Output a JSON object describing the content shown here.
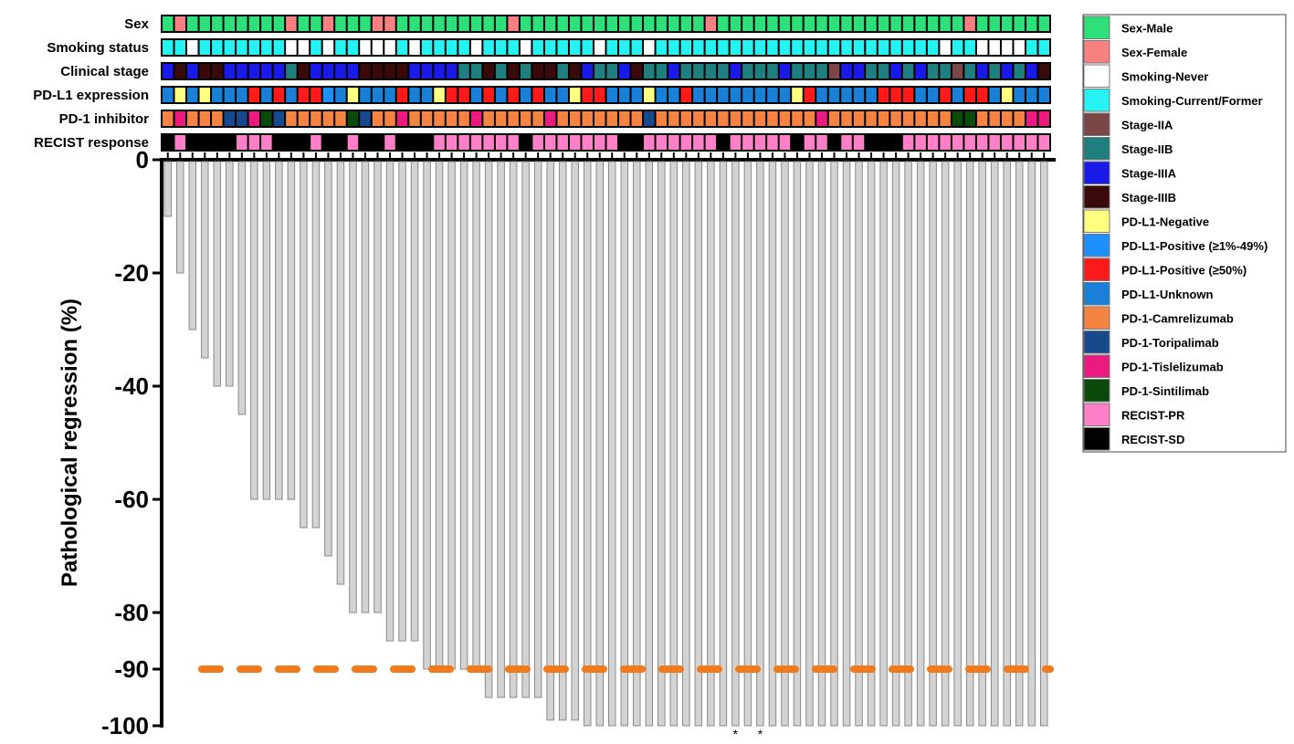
{
  "chart_data": {
    "type": "bar",
    "ylabel": "Pathological regression (%)",
    "ylim": [
      -100,
      0
    ],
    "yticks": [
      0,
      -20,
      -40,
      -60,
      -80,
      -90,
      -100
    ],
    "threshold": {
      "value": -90,
      "color": "#f07a1c",
      "style": "dashed"
    },
    "bar_color": "#d3d3d3",
    "values": [
      -10,
      -20,
      -30,
      -35,
      -40,
      -40,
      -45,
      -60,
      -60,
      -60,
      -60,
      -65,
      -65,
      -70,
      -75,
      -80,
      -80,
      -80,
      -85,
      -85,
      -85,
      -90,
      -90,
      -90,
      -90,
      -90,
      -95,
      -95,
      -95,
      -95,
      -95,
      -99,
      -99,
      -99,
      -100,
      -100,
      -100,
      -100,
      -100,
      -100,
      -100,
      -100,
      -100,
      -100,
      -100,
      -100,
      -100,
      -100,
      -100,
      -100,
      -100,
      -100,
      -100,
      -100,
      -100,
      -100,
      -100,
      -100,
      -100,
      -100,
      -100,
      -100,
      -100,
      -100,
      -100,
      -100,
      -100,
      -100,
      -100,
      -100,
      -100,
      -100
    ],
    "annotations": [
      {
        "bar_index": 46,
        "text": "*"
      },
      {
        "bar_index": 48,
        "text": "*"
      }
    ],
    "tracks": [
      {
        "label": "Sex",
        "cells": [
          "M",
          "F",
          "M",
          "M",
          "M",
          "M",
          "M",
          "M",
          "M",
          "M",
          "F",
          "M",
          "M",
          "F",
          "M",
          "M",
          "M",
          "F",
          "F",
          "M",
          "M",
          "M",
          "M",
          "M",
          "M",
          "M",
          "M",
          "M",
          "F",
          "M",
          "M",
          "M",
          "M",
          "M",
          "M",
          "M",
          "M",
          "M",
          "M",
          "M",
          "M",
          "M",
          "M",
          "M",
          "F",
          "M",
          "M",
          "M",
          "M",
          "M",
          "M",
          "M",
          "M",
          "M",
          "M",
          "M",
          "M",
          "M",
          "M",
          "M",
          "M",
          "M",
          "M",
          "M",
          "M",
          "F",
          "M",
          "M",
          "M",
          "M",
          "M",
          "M"
        ]
      },
      {
        "label": "Smoking status",
        "cells": [
          "C",
          "C",
          "N",
          "C",
          "C",
          "C",
          "C",
          "C",
          "C",
          "C",
          "N",
          "N",
          "C",
          "N",
          "C",
          "C",
          "N",
          "N",
          "N",
          "C",
          "N",
          "C",
          "C",
          "C",
          "C",
          "N",
          "C",
          "C",
          "C",
          "N",
          "C",
          "C",
          "C",
          "C",
          "C",
          "N",
          "C",
          "C",
          "C",
          "N",
          "C",
          "C",
          "C",
          "C",
          "C",
          "C",
          "C",
          "C",
          "C",
          "C",
          "C",
          "C",
          "C",
          "C",
          "C",
          "C",
          "C",
          "C",
          "C",
          "C",
          "C",
          "C",
          "C",
          "N",
          "C",
          "C",
          "N",
          "N",
          "N",
          "N",
          "C",
          "C"
        ]
      },
      {
        "label": "Clinical stage",
        "cells": [
          "A",
          "IIIB",
          "A",
          "IIIB",
          "IIIB",
          "A",
          "A",
          "A",
          "A",
          "A",
          "IIB",
          "IIIB",
          "A",
          "A",
          "A",
          "A",
          "IIIB",
          "IIIB",
          "IIIB",
          "IIIB",
          "A",
          "A",
          "A",
          "A",
          "IIB",
          "IIB",
          "IIIB",
          "IIB",
          "IIIB",
          "IIB",
          "IIIB",
          "IIIB",
          "IIB",
          "IIIB",
          "A",
          "IIB",
          "IIB",
          "A",
          "IIIB",
          "IIB",
          "IIB",
          "A",
          "IIB",
          "IIB",
          "IIB",
          "IIB",
          "A",
          "IIB",
          "IIB",
          "IIB",
          "A",
          "IIB",
          "IIB",
          "IIB",
          "IIA",
          "A",
          "A",
          "IIB",
          "IIB",
          "A",
          "IIB",
          "A",
          "IIB",
          "IIB",
          "IIA",
          "IIB",
          "A",
          "IIB",
          "A",
          "IIB",
          "A",
          "IIIB"
        ]
      },
      {
        "label": "PD-L1 expression",
        "cells": [
          "U",
          "NEG",
          "U",
          "NEG",
          "U",
          "U",
          "U",
          "HI",
          "U",
          "HI",
          "U",
          "HI",
          "HI",
          "LO",
          "U",
          "NEG",
          "U",
          "U",
          "U",
          "HI",
          "U",
          "U",
          "NEG",
          "HI",
          "HI",
          "U",
          "HI",
          "U",
          "HI",
          "U",
          "HI",
          "U",
          "U",
          "NEG",
          "HI",
          "HI",
          "U",
          "U",
          "U",
          "NEG",
          "U",
          "U",
          "HI",
          "U",
          "U",
          "U",
          "U",
          "U",
          "U",
          "U",
          "U",
          "NEG",
          "HI",
          "U",
          "U",
          "U",
          "U",
          "U",
          "HI",
          "HI",
          "HI",
          "U",
          "U",
          "HI",
          "U",
          "HI",
          "HI",
          "U",
          "NEG",
          "U",
          "U",
          "U"
        ]
      },
      {
        "label": "PD-1 inhibitor",
        "cells": [
          "C",
          "TS",
          "C",
          "C",
          "C",
          "TP",
          "TP",
          "TS",
          "SN",
          "TP",
          "C",
          "C",
          "C",
          "C",
          "C",
          "SN",
          "TP",
          "C",
          "C",
          "TS",
          "C",
          "C",
          "C",
          "C",
          "C",
          "TS",
          "C",
          "C",
          "C",
          "C",
          "C",
          "TS",
          "C",
          "C",
          "C",
          "C",
          "C",
          "C",
          "C",
          "TP",
          "C",
          "C",
          "C",
          "C",
          "C",
          "C",
          "C",
          "C",
          "C",
          "C",
          "C",
          "C",
          "C",
          "TS",
          "C",
          "C",
          "C",
          "C",
          "C",
          "C",
          "C",
          "C",
          "C",
          "C",
          "SN",
          "SN",
          "C",
          "C",
          "C",
          "C",
          "TS",
          "TS"
        ]
      },
      {
        "label": "RECIST response",
        "cells": [
          "SD",
          "PR",
          "SD",
          "SD",
          "SD",
          "SD",
          "PR",
          "PR",
          "PR",
          "SD",
          "SD",
          "SD",
          "PR",
          "SD",
          "SD",
          "PR",
          "SD",
          "SD",
          "PR",
          "SD",
          "SD",
          "SD",
          "PR",
          "PR",
          "PR",
          "PR",
          "PR",
          "PR",
          "PR",
          "SD",
          "PR",
          "PR",
          "PR",
          "PR",
          "PR",
          "PR",
          "PR",
          "SD",
          "SD",
          "PR",
          "PR",
          "PR",
          "PR",
          "PR",
          "PR",
          "SD",
          "PR",
          "PR",
          "PR",
          "PR",
          "PR",
          "SD",
          "PR",
          "PR",
          "SD",
          "PR",
          "PR",
          "SD",
          "SD",
          "SD",
          "PR",
          "PR",
          "PR",
          "PR",
          "PR",
          "PR",
          "PR",
          "PR",
          "PR",
          "PR",
          "PR",
          "PR"
        ]
      }
    ],
    "category_colors": {
      "M": "#2ee07a",
      "F": "#f88080",
      "N": "#ffffff",
      "C": "#27f2f2",
      "IIA": "#7a4646",
      "IIB": "#1f7f7f",
      "A": "#1a1ae8",
      "IIIB": "#3a0a0a",
      "NEG": "#ffff80",
      "LO": "#1e8fff",
      "HI": "#ff1a1a",
      "U": "#1a7fd6",
      "C_": "#f58442",
      "TP": "#174a8c",
      "TS": "#ea1a7f",
      "SN": "#0a4a0a",
      "PR": "#ff80c8",
      "SD": "#000000"
    },
    "inhibitor_colors": {
      "C": "#f58442",
      "TP": "#174a8c",
      "TS": "#ea1a7f",
      "SN": "#0a4a0a"
    },
    "legend": [
      {
        "label": "Sex-Male",
        "color": "#2ee07a"
      },
      {
        "label": "Sex-Female",
        "color": "#f88080"
      },
      {
        "label": "Smoking-Never",
        "color": "#ffffff"
      },
      {
        "label": "Smoking-Current/Former",
        "color": "#27f2f2"
      },
      {
        "label": "Stage-IIA",
        "color": "#7a4646"
      },
      {
        "label": "Stage-IIB",
        "color": "#1f7f7f"
      },
      {
        "label": "Stage-IIIA",
        "color": "#1a1ae8"
      },
      {
        "label": "Stage-IIIB",
        "color": "#3a0a0a"
      },
      {
        "label": "PD-L1-Negative",
        "color": "#ffff80"
      },
      {
        "label": "PD-L1-Positive (≥1%-49%)",
        "color": "#1e8fff"
      },
      {
        "label": "PD-L1-Positive (≥50%)",
        "color": "#ff1a1a"
      },
      {
        "label": "PD-L1-Unknown",
        "color": "#1a7fd6"
      },
      {
        "label": "PD-1-Camrelizumab",
        "color": "#f58442"
      },
      {
        "label": "PD-1-Toripalimab",
        "color": "#174a8c"
      },
      {
        "label": "PD-1-Tislelizumab",
        "color": "#ea1a7f"
      },
      {
        "label": "PD-1-Sintilimab",
        "color": "#0a4a0a"
      },
      {
        "label": "RECIST-PR",
        "color": "#ff80c8"
      },
      {
        "label": "RECIST-SD",
        "color": "#000000"
      }
    ],
    "legend_position": "right",
    "grid": false
  }
}
